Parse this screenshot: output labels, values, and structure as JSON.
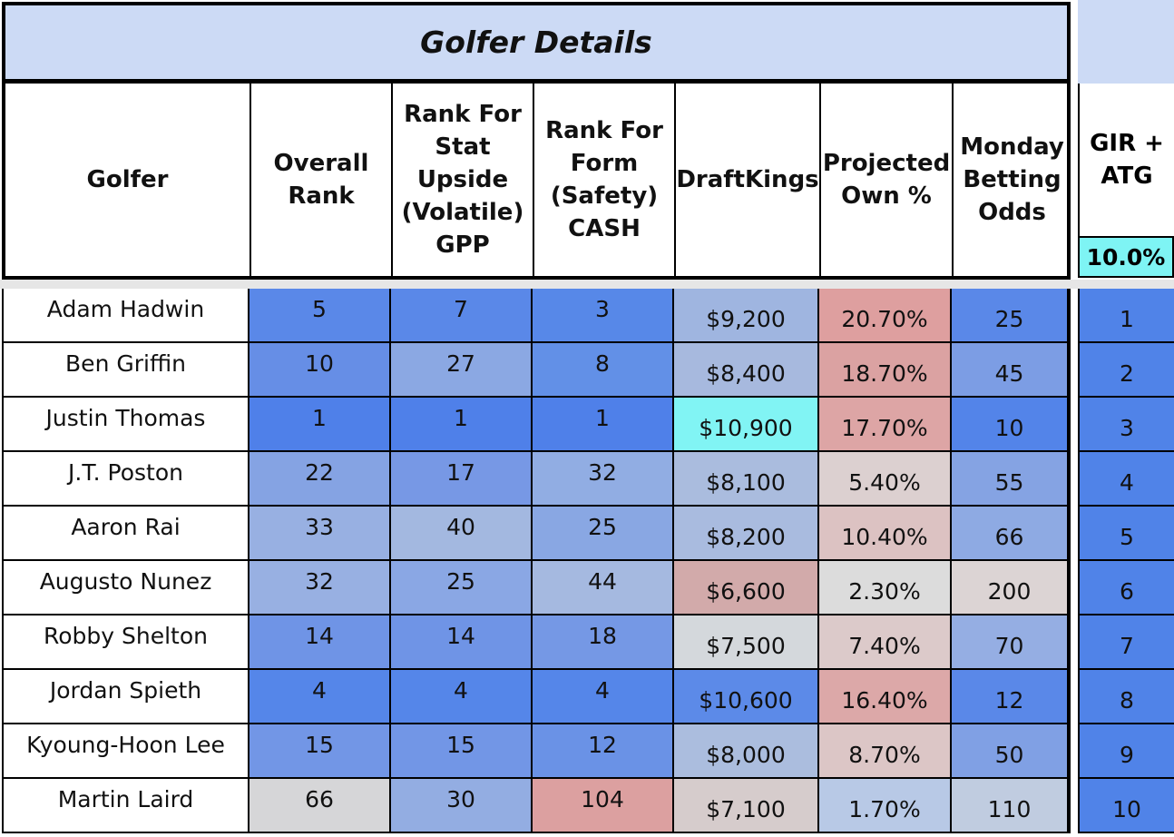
{
  "title": "Golfer Details",
  "headers": {
    "golfer": "Golfer",
    "overall": "Overall Rank",
    "stat": "Rank For Stat Upside (Volatile) GPP",
    "form": "Rank For Form (Safety) CASH",
    "dk": "DraftKings",
    "own": "Projected Own %",
    "odds": "Monday Betting Odds",
    "gir": "GIR + ATG",
    "gir_weight": "10.0%"
  },
  "colors": {
    "title_bg": "#ccdaf5",
    "gir_weight_bg": "#7ef4f4",
    "strong_blue": "#5083e8",
    "salmon": "#dc9c9c"
  },
  "rows": [
    {
      "golfer": "Adam Hadwin",
      "overall": "5",
      "stat": "7",
      "form": "3",
      "dk": "$9,200",
      "own": "20.70%",
      "odds": "25",
      "gir": "1",
      "c": [
        "#5a88e8",
        "#5a88e8",
        "#5788e8",
        "#9fb5e0",
        "#de9f9f",
        "#5a88e8"
      ]
    },
    {
      "golfer": "Ben Griffin",
      "overall": "10",
      "stat": "27",
      "form": "8",
      "dk": "$8,400",
      "own": "18.70%",
      "odds": "45",
      "gir": "2",
      "c": [
        "#668ee6",
        "#8ba8e3",
        "#6290e7",
        "#a7b9de",
        "#dba2a2",
        "#7c9de4"
      ]
    },
    {
      "golfer": "Justin Thomas",
      "overall": "1",
      "stat": "1",
      "form": "1",
      "dk": "$10,900",
      "own": "17.70%",
      "odds": "10",
      "gir": "3",
      "c": [
        "#4f80e9",
        "#4f80e9",
        "#4f80e9",
        "#81f4f4",
        "#dda5a5",
        "#5384e9"
      ]
    },
    {
      "golfer": "J.T. Poston",
      "overall": "22",
      "stat": "17",
      "form": "32",
      "dk": "$8,100",
      "own": "5.40%",
      "odds": "55",
      "gir": "4",
      "c": [
        "#85a3e3",
        "#7798e5",
        "#91ade3",
        "#aabcde",
        "#dcd0d0",
        "#85a3e3"
      ]
    },
    {
      "golfer": "Aaron Rai",
      "overall": "33",
      "stat": "40",
      "form": "25",
      "dk": "$8,200",
      "own": "10.40%",
      "odds": "66",
      "gir": "5",
      "c": [
        "#98b0e2",
        "#a3b8e0",
        "#89a7e3",
        "#a9bbdf",
        "#dcc2c2",
        "#8eaae3"
      ]
    },
    {
      "golfer": "Augusto Nunez",
      "overall": "32",
      "stat": "25",
      "form": "44",
      "dk": "$6,600",
      "own": "2.30%",
      "odds": "200",
      "gir": "6",
      "c": [
        "#98b0e2",
        "#8aa7e4",
        "#a5b9e0",
        "#d2aaaa",
        "#dcdcdc",
        "#dcd4d4"
      ]
    },
    {
      "golfer": "Robby Shelton",
      "overall": "14",
      "stat": "14",
      "form": "18",
      "dk": "$7,500",
      "own": "7.40%",
      "odds": "70",
      "gir": "7",
      "c": [
        "#6f94e6",
        "#6f94e6",
        "#7598e5",
        "#d4d8dc",
        "#dccaca",
        "#95aee3"
      ]
    },
    {
      "golfer": "Jordan Spieth",
      "overall": "4",
      "stat": "4",
      "form": "4",
      "dk": "$10,600",
      "own": "16.40%",
      "odds": "12",
      "gir": "8",
      "c": [
        "#5586e9",
        "#5586e9",
        "#5586e9",
        "#5c8ae8",
        "#dca8a8",
        "#5a88e8"
      ]
    },
    {
      "golfer": "Kyoung-Hoon Lee",
      "overall": "15",
      "stat": "15",
      "form": "12",
      "dk": "$8,000",
      "own": "8.70%",
      "odds": "50",
      "gir": "9",
      "c": [
        "#7296e6",
        "#7296e6",
        "#6a92e6",
        "#abbdde",
        "#dcc6c6",
        "#80a0e4"
      ]
    },
    {
      "golfer": "Martin Laird",
      "overall": "66",
      "stat": "30",
      "form": "104",
      "dk": "$7,100",
      "own": "1.70%",
      "odds": "110",
      "gir": "10",
      "c": [
        "#d6d6d8",
        "#93ade2",
        "#dca0a0",
        "#d6cccc",
        "#b8c9e6",
        "#c0cce0"
      ]
    }
  ]
}
